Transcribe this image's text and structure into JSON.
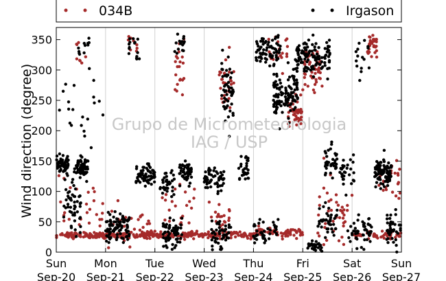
{
  "chart_data": {
    "type": "scatter",
    "ylabel": "Wind direction (degree)",
    "xlabel": "",
    "ylim": [
      0,
      370
    ],
    "yticks": [
      0,
      50,
      100,
      150,
      200,
      250,
      300,
      350
    ],
    "xlim": [
      "2015-09-20",
      "2015-09-27"
    ],
    "xticks": [
      {
        "day": "Sun",
        "date": "Sep-20"
      },
      {
        "day": "Mon",
        "date": "Sep-21"
      },
      {
        "day": "Tue",
        "date": "Sep-22"
      },
      {
        "day": "Wed",
        "date": "Sep-23"
      },
      {
        "day": "Thu",
        "date": "Sep-24"
      },
      {
        "day": "Fri",
        "date": "Sep-25"
      },
      {
        "day": "Sat",
        "date": "Sep-26"
      },
      {
        "day": "Sun",
        "date": "Sep-27"
      }
    ],
    "grid": "vertical",
    "legend_position": "top",
    "watermark": [
      "Grupo de Micrometeorologia",
      "IAG / USP"
    ],
    "series": [
      {
        "name": "034B",
        "color": "#a52a2a",
        "points_desc": "wind direction samples per day",
        "clusters": [
          {
            "day": 0.0,
            "span": 1.0,
            "center": 28,
            "spread": 4,
            "n": 90
          },
          {
            "day": 0.05,
            "span": 0.9,
            "center": 75,
            "spread": 40,
            "n": 25
          },
          {
            "day": 0.4,
            "span": 0.2,
            "center": 320,
            "spread": 25,
            "n": 8
          },
          {
            "day": 1.0,
            "span": 1.0,
            "center": 28,
            "spread": 4,
            "n": 90
          },
          {
            "day": 1.05,
            "span": 0.9,
            "center": 45,
            "spread": 25,
            "n": 30
          },
          {
            "day": 1.45,
            "span": 0.2,
            "center": 345,
            "spread": 15,
            "n": 8
          },
          {
            "day": 2.0,
            "span": 1.0,
            "center": 28,
            "spread": 4,
            "n": 80
          },
          {
            "day": 2.15,
            "span": 0.7,
            "center": 60,
            "spread": 50,
            "n": 25
          },
          {
            "day": 2.4,
            "span": 0.2,
            "center": 300,
            "spread": 55,
            "n": 20
          },
          {
            "day": 3.0,
            "span": 1.0,
            "center": 28,
            "spread": 4,
            "n": 70
          },
          {
            "day": 3.3,
            "span": 0.3,
            "center": 280,
            "spread": 50,
            "n": 30
          },
          {
            "day": 3.1,
            "span": 0.5,
            "center": 60,
            "spread": 30,
            "n": 20
          },
          {
            "day": 4.0,
            "span": 1.0,
            "center": 32,
            "spread": 6,
            "n": 70
          },
          {
            "day": 4.3,
            "span": 0.4,
            "center": 330,
            "spread": 25,
            "n": 20
          },
          {
            "day": 4.7,
            "span": 0.3,
            "center": 230,
            "spread": 20,
            "n": 45
          },
          {
            "day": 5.0,
            "span": 0.4,
            "center": 300,
            "spread": 30,
            "n": 50
          },
          {
            "day": 5.3,
            "span": 0.7,
            "center": 60,
            "spread": 50,
            "n": 40
          },
          {
            "day": 6.0,
            "span": 1.0,
            "center": 28,
            "spread": 5,
            "n": 60
          },
          {
            "day": 6.3,
            "span": 0.2,
            "center": 340,
            "spread": 15,
            "n": 35
          },
          {
            "day": 6.5,
            "span": 0.5,
            "center": 120,
            "spread": 30,
            "n": 25
          }
        ]
      },
      {
        "name": "Irgason",
        "color": "#000000",
        "points_desc": "wind direction samples per day",
        "clusters": [
          {
            "day": 0.0,
            "span": 0.25,
            "center": 145,
            "spread": 15,
            "n": 60
          },
          {
            "day": 0.15,
            "span": 0.35,
            "center": 80,
            "spread": 40,
            "n": 50
          },
          {
            "day": 0.4,
            "span": 0.25,
            "center": 140,
            "spread": 15,
            "n": 60
          },
          {
            "day": 0.45,
            "span": 0.25,
            "center": 320,
            "spread": 30,
            "n": 12
          },
          {
            "day": 0.05,
            "span": 0.9,
            "center": 220,
            "spread": 60,
            "n": 20
          },
          {
            "day": 1.0,
            "span": 0.5,
            "center": 40,
            "spread": 20,
            "n": 90
          },
          {
            "day": 1.45,
            "span": 0.25,
            "center": 330,
            "spread": 25,
            "n": 15
          },
          {
            "day": 1.6,
            "span": 0.4,
            "center": 125,
            "spread": 15,
            "n": 60
          },
          {
            "day": 2.1,
            "span": 0.3,
            "center": 115,
            "spread": 15,
            "n": 35
          },
          {
            "day": 2.15,
            "span": 0.4,
            "center": 30,
            "spread": 20,
            "n": 60
          },
          {
            "day": 2.5,
            "span": 0.25,
            "center": 130,
            "spread": 15,
            "n": 45
          },
          {
            "day": 2.4,
            "span": 0.2,
            "center": 340,
            "spread": 20,
            "n": 15
          },
          {
            "day": 3.0,
            "span": 0.4,
            "center": 120,
            "spread": 15,
            "n": 55
          },
          {
            "day": 3.15,
            "span": 0.4,
            "center": 30,
            "spread": 20,
            "n": 50
          },
          {
            "day": 3.35,
            "span": 0.25,
            "center": 270,
            "spread": 45,
            "n": 50
          },
          {
            "day": 3.7,
            "span": 0.2,
            "center": 135,
            "spread": 20,
            "n": 30
          },
          {
            "day": 4.0,
            "span": 0.5,
            "center": 30,
            "spread": 20,
            "n": 40
          },
          {
            "day": 4.05,
            "span": 0.5,
            "center": 335,
            "spread": 20,
            "n": 70
          },
          {
            "day": 4.4,
            "span": 0.5,
            "center": 255,
            "spread": 35,
            "n": 110
          },
          {
            "day": 4.85,
            "span": 0.7,
            "center": 320,
            "spread": 25,
            "n": 120
          },
          {
            "day": 5.1,
            "span": 0.3,
            "center": 10,
            "spread": 8,
            "n": 30
          },
          {
            "day": 5.3,
            "span": 0.4,
            "center": 50,
            "spread": 25,
            "n": 40
          },
          {
            "day": 5.45,
            "span": 0.25,
            "center": 145,
            "spread": 25,
            "n": 35
          },
          {
            "day": 5.75,
            "span": 0.3,
            "center": 130,
            "spread": 20,
            "n": 30
          },
          {
            "day": 5.9,
            "span": 0.5,
            "center": 30,
            "spread": 20,
            "n": 50
          },
          {
            "day": 6.05,
            "span": 0.3,
            "center": 310,
            "spread": 40,
            "n": 15
          },
          {
            "day": 6.45,
            "span": 0.35,
            "center": 130,
            "spread": 20,
            "n": 90
          },
          {
            "day": 6.7,
            "span": 0.3,
            "center": 40,
            "spread": 20,
            "n": 40
          }
        ]
      }
    ]
  },
  "legend": {
    "series1_label": "034B",
    "series2_label": "Irgason"
  }
}
